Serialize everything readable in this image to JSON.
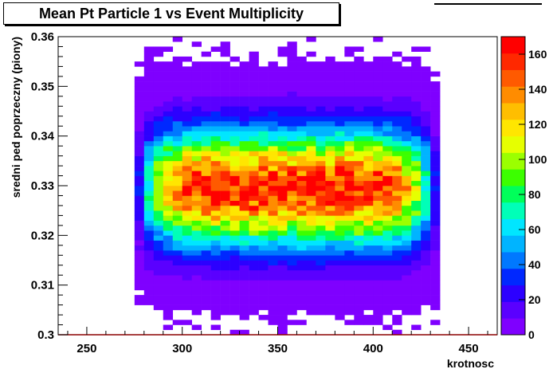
{
  "title": "Mean Pt Particle 1 vs Event Multiplicity",
  "chart_data": {
    "type": "heatmap",
    "title": "Mean Pt Particle 1 vs Event Multiplicity",
    "xlabel": "krotnosc",
    "ylabel": "sredni ped poprzeczny (piony)",
    "xlim": [
      235,
      465
    ],
    "ylim": [
      0.3,
      0.36
    ],
    "x_ticks": [
      250,
      300,
      350,
      400,
      450
    ],
    "y_ticks": [
      0.3,
      0.31,
      0.32,
      0.33,
      0.34,
      0.35,
      0.36
    ],
    "x_tick_labels": [
      "250",
      "300",
      "350",
      "400",
      "450"
    ],
    "y_tick_labels": [
      "0.3",
      "0.31",
      "0.32",
      "0.33",
      "0.34",
      "0.35",
      "0.36"
    ],
    "colorbar": {
      "min": 0,
      "max": 170,
      "ticks": [
        0,
        20,
        40,
        60,
        80,
        100,
        120,
        140,
        160
      ],
      "tick_labels": [
        "0",
        "20",
        "40",
        "60",
        "80",
        "100",
        "120",
        "140",
        "160"
      ]
    },
    "bins": {
      "x_min": 235,
      "x_max": 465,
      "x_width": 5,
      "y_min": 0.3,
      "y_max": 0.36,
      "y_width": 0.001
    },
    "density_model": {
      "peak": 165,
      "x_center": 355,
      "x_half_width": 80,
      "y_center": 0.3295,
      "y_sigma": 0.0078
    },
    "colors": [
      "#7f00ff",
      "#5a00ff",
      "#2c00ff",
      "#0028ff",
      "#0078ff",
      "#00b4ff",
      "#00e6ff",
      "#00ffb8",
      "#00ff5a",
      "#3cff00",
      "#9bff00",
      "#e6ff00",
      "#ffe600",
      "#ffbe00",
      "#ff8c00",
      "#ff5a00",
      "#ff2800",
      "#ff0000"
    ],
    "grid": false,
    "legend": "none"
  }
}
